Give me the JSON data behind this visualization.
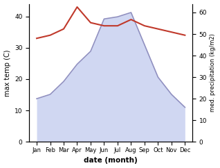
{
  "months": [
    "Jan",
    "Feb",
    "Mar",
    "Apr",
    "May",
    "Jun",
    "Jul",
    "Aug",
    "Sep",
    "Oct",
    "Nov",
    "Dec"
  ],
  "max_temp": [
    33,
    34,
    36,
    43,
    38,
    37,
    37,
    39,
    37,
    36,
    35,
    34
  ],
  "precipitation": [
    20,
    22,
    28,
    36,
    42,
    57,
    58,
    60,
    45,
    30,
    22,
    16
  ],
  "temp_color": "#c0392b",
  "precip_fill_color": "#c8d0f0",
  "precip_line_color": "#9090c0",
  "ylabel_left": "max temp (C)",
  "ylabel_right": "med. precipitation (kg/m2)",
  "xlabel": "date (month)",
  "ylim_left": [
    0,
    44
  ],
  "ylim_right": [
    0,
    64
  ],
  "yticks_left": [
    0,
    10,
    20,
    30,
    40
  ],
  "yticks_right": [
    0,
    10,
    20,
    30,
    40,
    50,
    60
  ],
  "background_color": "#ffffff",
  "temp_linewidth": 1.5,
  "precip_linewidth": 1.2
}
